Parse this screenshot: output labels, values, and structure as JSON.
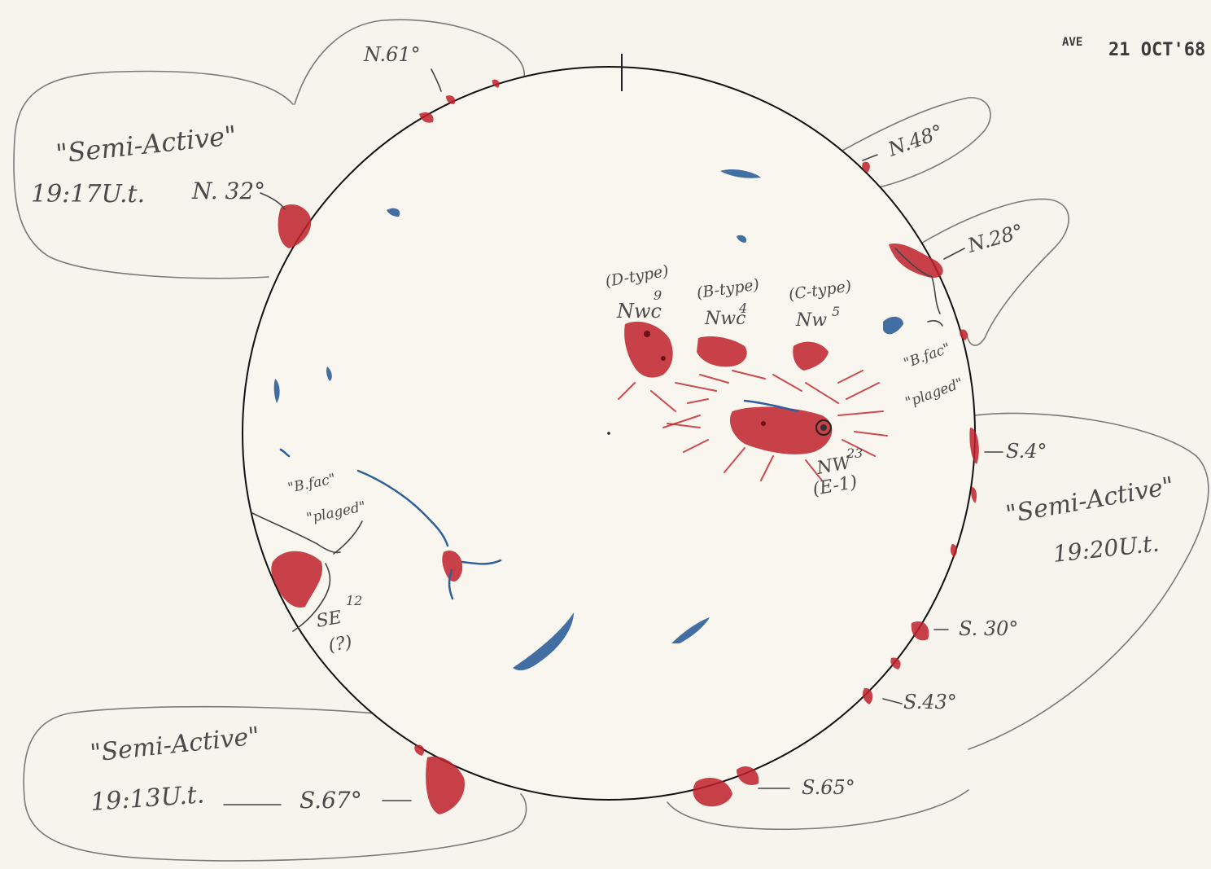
{
  "header": {
    "observer": "AVE",
    "date": "21 OCT'68"
  },
  "limb_labels": {
    "n61": "N.61°",
    "n48": "N.48°",
    "n28": "N.28°",
    "n32": "N. 32°",
    "s4": "S.4°",
    "s30": "S. 30°",
    "s43": "S.43°",
    "s65": "S.65°",
    "s67": "S.67°"
  },
  "callouts": {
    "nw": {
      "title": "\"Semi-Active\"",
      "time": "19:17U.t."
    },
    "se": {
      "title": "\"Semi-Active\"",
      "time": "19:20U.t."
    },
    "sw": {
      "title": "\"Semi-Active\"",
      "time": "19:13U.t."
    }
  },
  "regions": {
    "nwc9": {
      "type": "(D-type)",
      "name": "Nwc",
      "num": "9"
    },
    "nwc4": {
      "type": "(B-type)",
      "name": "Nwc",
      "num": "4"
    },
    "nw5": {
      "type": "(C-type)",
      "name": "Nw",
      "num": "5"
    },
    "nw23": {
      "name": "NW",
      "num": "23",
      "class": "(E-1)"
    },
    "se12": {
      "name": "SE",
      "num": "12",
      "note": "(?)"
    }
  },
  "plage_notes": {
    "east": {
      "line1": "\"B.fac\"",
      "line2": "\"plaged\""
    },
    "west": {
      "line1": "\"B.fac\"",
      "line2": "\"plaged\""
    }
  },
  "colors": {
    "plage_red": "#c0202a",
    "filament_blue": "#2f5f9a",
    "pencil": "#7a7a7a",
    "paper": "#f6f4ec"
  }
}
